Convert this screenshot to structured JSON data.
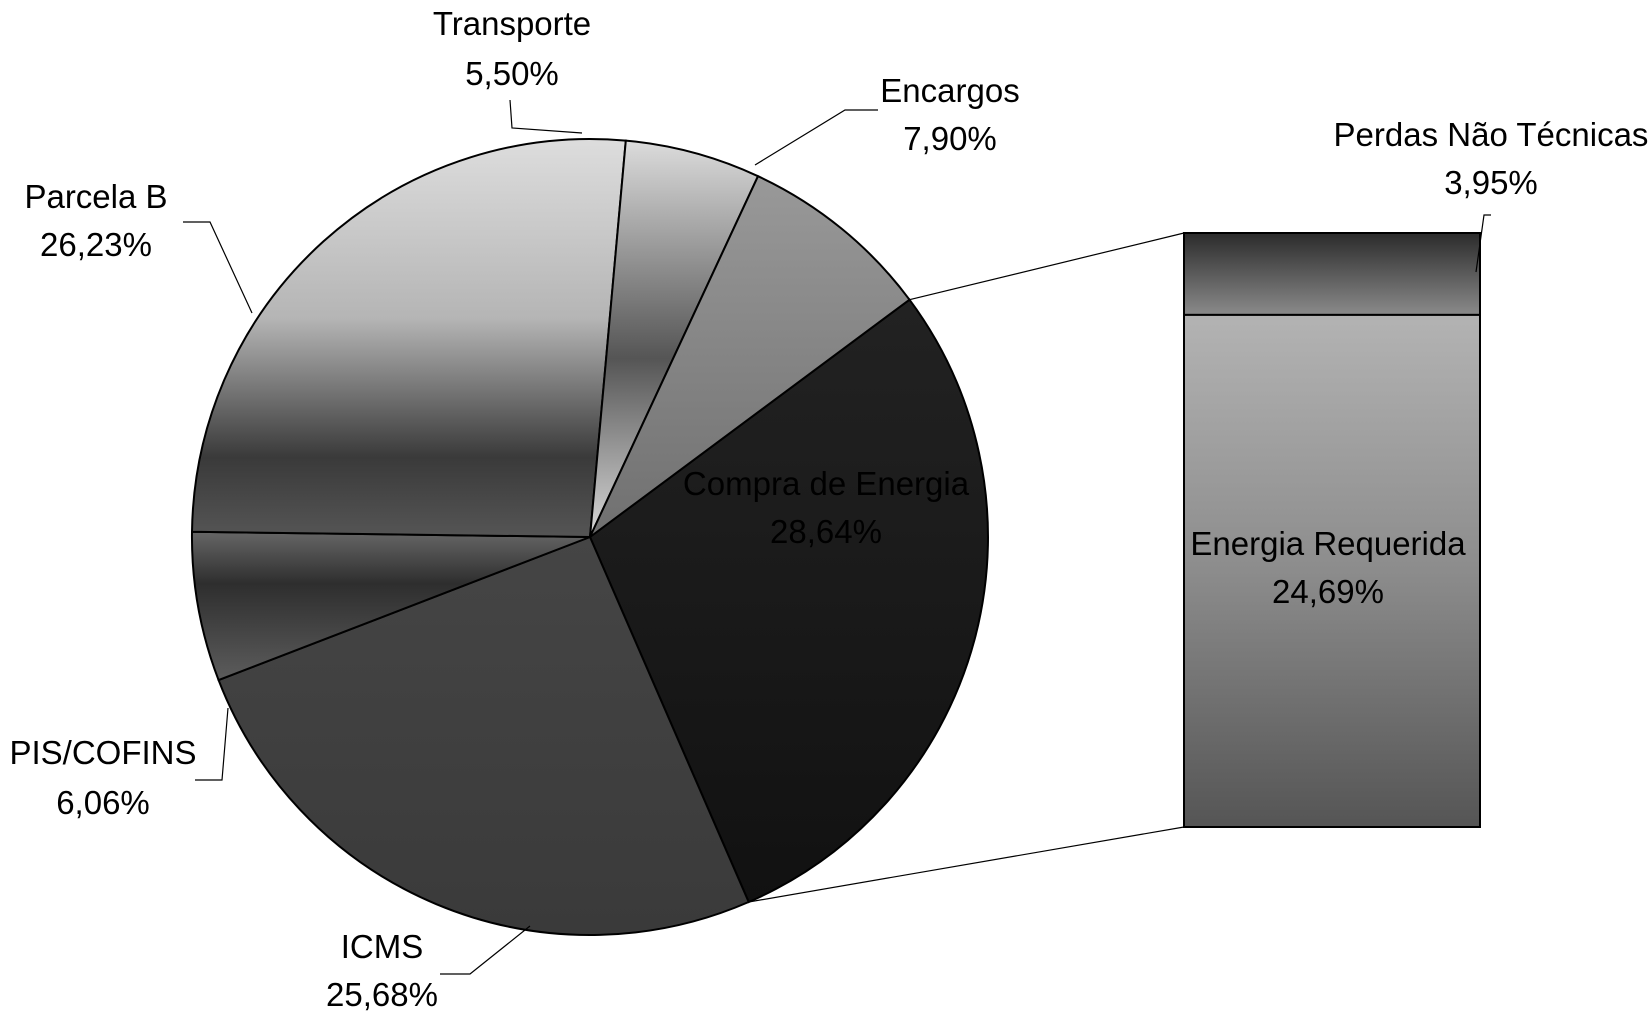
{
  "chart_data": {
    "type": "pie",
    "title": "",
    "slices": [
      {
        "name": "Compra de Energia",
        "value": 28.64,
        "label": "28,64%",
        "color": "#1a1a1a"
      },
      {
        "name": "ICMS",
        "value": 25.68,
        "label": "25,68%",
        "color": "#3d3d3d"
      },
      {
        "name": "PIS/COFINS",
        "value": 6.06,
        "label": "6,06%",
        "color": "#4f4f4f"
      },
      {
        "name": "Parcela B",
        "value": 26.23,
        "label": "26,23%",
        "color": "#c8c8c8"
      },
      {
        "name": "Transporte",
        "value": 5.5,
        "label": "5,50%",
        "color": "#a9a9a9"
      },
      {
        "name": "Encargos",
        "value": 7.9,
        "label": "7,90%",
        "color": "#8a8a8a"
      }
    ],
    "breakdown": {
      "of": "Compra de Energia",
      "type": "stacked-bar",
      "segments": [
        {
          "name": "Perdas Não Técnicas",
          "value": 3.95,
          "label": "3,95%",
          "color": "#5a5a5a"
        },
        {
          "name": "Energia Requerida",
          "value": 24.69,
          "label": "24,69%",
          "color": "#a0a0a0"
        }
      ]
    },
    "legend": "none"
  }
}
